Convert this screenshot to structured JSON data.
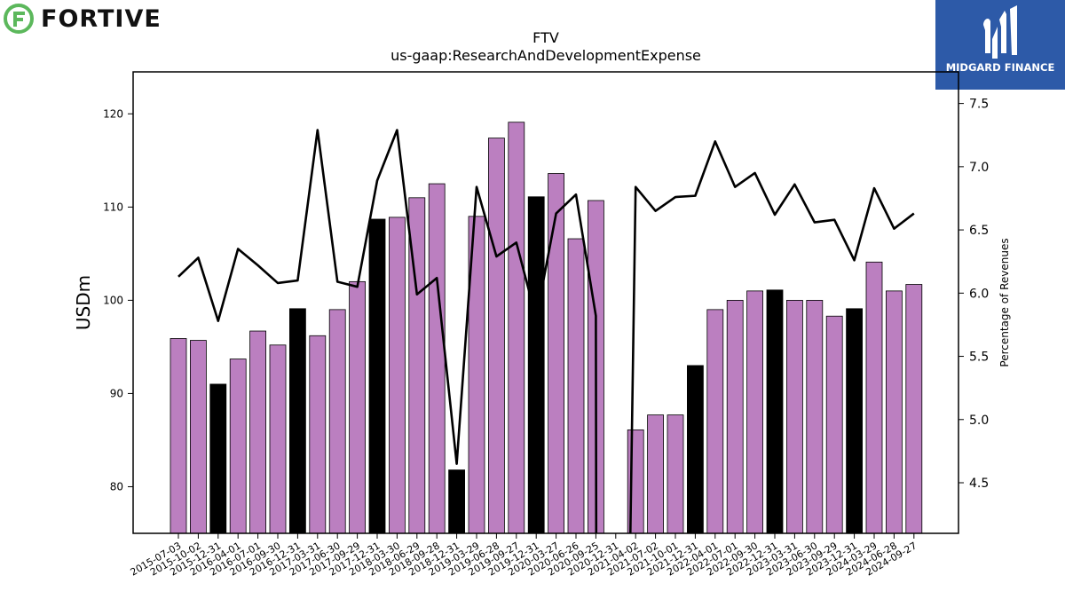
{
  "brand": {
    "name": "FORTIVE",
    "icon": "fortive-logo-icon",
    "icon_color": "#5cb85c"
  },
  "publisher": {
    "name": "MIDGARD FINANCE",
    "icon": "midgard-logo-icon",
    "bg_color": "#2d5aa8"
  },
  "chart_data": {
    "type": "bar",
    "title": "FTV",
    "subtitle": "us-gaap:ResearchAndDevelopmentExpense",
    "ylabel": "USDm",
    "y2label": "Percentage of Revenues",
    "ylim": [
      75,
      124.5
    ],
    "y2lim": [
      4.1,
      7.75
    ],
    "yticks": [
      80,
      90,
      100,
      110,
      120
    ],
    "y2ticks": [
      4.5,
      5.0,
      5.5,
      6.0,
      6.5,
      7.0,
      7.5
    ],
    "colors": {
      "quarter_bar": "#bb7fc0",
      "fiscal_year_bar": "#000000",
      "line": "#000000"
    },
    "categories": [
      "2015-07-03",
      "2015-10-02",
      "2015-12-31",
      "2016-04-01",
      "2016-07-01",
      "2016-09-30",
      "2016-12-31",
      "2017-03-31",
      "2017-06-30",
      "2017-09-29",
      "2017-12-31",
      "2018-03-30",
      "2018-06-29",
      "2018-09-28",
      "2018-12-31",
      "2019-03-29",
      "2019-06-28",
      "2019-09-27",
      "2019-12-31",
      "2020-03-27",
      "2020-06-26",
      "2020-09-25",
      "2020-12-31",
      "2021-04-02",
      "2021-07-02",
      "2021-10-01",
      "2021-12-31",
      "2022-04-01",
      "2022-07-01",
      "2022-09-30",
      "2022-12-31",
      "2023-03-31",
      "2023-06-30",
      "2023-09-29",
      "2023-12-31",
      "2024-03-29",
      "2024-06-28",
      "2024-09-27"
    ],
    "series": [
      {
        "values": [
          95.9,
          95.7,
          91.0,
          93.7,
          96.7,
          95.2,
          99.1,
          96.2,
          99.0,
          102.0,
          108.7,
          108.9,
          111.0,
          112.5,
          81.8,
          109.0,
          117.4,
          119.1,
          111.1,
          113.6,
          106.6,
          110.7,
          null,
          86.1,
          87.7,
          87.7,
          93.0,
          99.0,
          100.0,
          101.0,
          101.1,
          100.0,
          100.0,
          98.3,
          99.1,
          104.1,
          101.0,
          101.7
        ]
      },
      {
        "values": [
          6.13,
          6.28,
          5.78,
          6.35,
          6.22,
          6.08,
          6.1,
          7.29,
          6.09,
          6.05,
          6.89,
          7.29,
          5.99,
          6.12,
          4.65,
          6.84,
          6.29,
          6.4,
          5.8,
          6.63,
          6.78,
          5.82,
          null,
          6.84,
          6.65,
          6.76,
          6.77,
          7.2,
          6.84,
          6.95,
          6.62,
          6.86,
          6.56,
          6.58,
          6.26,
          6.83,
          6.51,
          6.63
        ]
      }
    ],
    "fiscal_year_end": [
      false,
      false,
      true,
      false,
      false,
      false,
      true,
      false,
      false,
      false,
      true,
      false,
      false,
      false,
      true,
      false,
      false,
      false,
      true,
      false,
      false,
      false,
      false,
      false,
      false,
      false,
      true,
      false,
      false,
      false,
      true,
      false,
      false,
      false,
      true,
      false,
      false,
      false
    ],
    "line_breaks": {
      "high_exit_value": 3.6,
      "reentry_from": 3.6
    },
    "grid": false,
    "legend": "none"
  }
}
